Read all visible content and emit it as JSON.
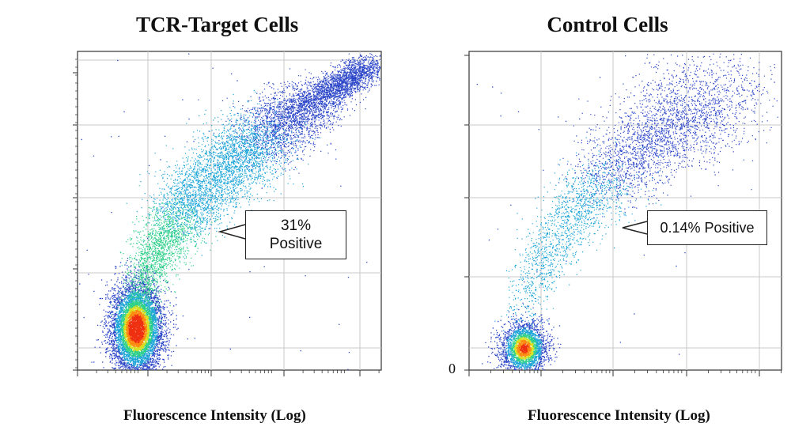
{
  "chart_data": [
    {
      "type": "scatter",
      "title": "TCR-Target Cells",
      "xlabel": "Fluorescence Intensity (Log)",
      "ylabel": "",
      "x_scale": "log",
      "grid": true,
      "annotation": "31%\nPositive",
      "positive_percent": 31,
      "colors": [
        "#2b45c8",
        "#1ea6d8",
        "#2fd08a",
        "#d8e020",
        "#ff8a10",
        "#ee3010"
      ]
    },
    {
      "type": "scatter",
      "title": "Control Cells",
      "xlabel": "Fluorescence Intensity (Log)",
      "ylabel": "",
      "x_scale": "log",
      "grid": true,
      "y_tick_label": "0",
      "annotation": "0.14% Positive",
      "positive_percent": 0.14,
      "colors": [
        "#2b45c8",
        "#1ea6d8",
        "#2fd08a",
        "#d8e020",
        "#ff8a10",
        "#ee3010"
      ]
    }
  ]
}
